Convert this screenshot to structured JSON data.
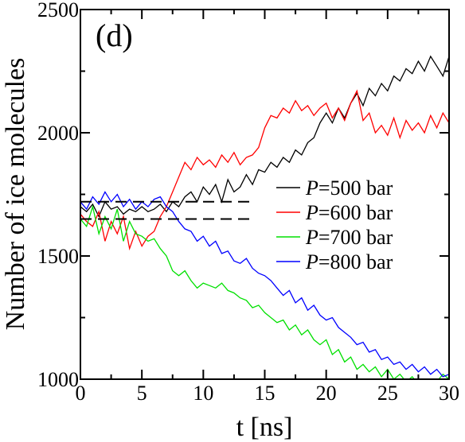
{
  "chart_data": {
    "type": "line",
    "panel_label": "(d)",
    "xlabel": "t [ns]",
    "ylabel": "Number of ice molecules",
    "xlim": [
      0,
      30
    ],
    "ylim": [
      1000,
      2500
    ],
    "x_ticks": [
      0,
      5,
      10,
      15,
      20,
      25,
      30
    ],
    "y_ticks": [
      1000,
      1500,
      2000,
      2500
    ],
    "grid": false,
    "legend_position": "center-right",
    "reference_lines": [
      {
        "style": "dashed",
        "color": "#000000",
        "y": 1720,
        "x_range": [
          0,
          14
        ]
      },
      {
        "style": "dashed",
        "color": "#000000",
        "y": 1650,
        "x_range": [
          0,
          14
        ]
      }
    ],
    "series": [
      {
        "name": "P=500 bar",
        "name_italic": "P",
        "name_rest": "=500 bar",
        "color": "#000000",
        "x": [
          0,
          0.5,
          1,
          1.5,
          2,
          2.5,
          3,
          3.5,
          4,
          4.5,
          5,
          5.5,
          6,
          6.5,
          7,
          7.5,
          8,
          8.5,
          9,
          9.5,
          10,
          10.5,
          11,
          11.5,
          12,
          12.5,
          13,
          13.5,
          14,
          14.5,
          15,
          15.5,
          16,
          16.5,
          17,
          17.5,
          18,
          18.5,
          19,
          19.5,
          20,
          20.5,
          21,
          21.5,
          22,
          22.5,
          23,
          23.5,
          24,
          24.5,
          25,
          25.5,
          26,
          26.5,
          27,
          27.5,
          28,
          28.5,
          29,
          29.5,
          30
        ],
        "values": [
          1700,
          1680,
          1710,
          1660,
          1720,
          1690,
          1700,
          1670,
          1690,
          1680,
          1700,
          1680,
          1690,
          1710,
          1680,
          1720,
          1700,
          1740,
          1760,
          1720,
          1780,
          1750,
          1790,
          1720,
          1810,
          1760,
          1780,
          1830,
          1790,
          1850,
          1840,
          1880,
          1860,
          1900,
          1880,
          1930,
          1910,
          1960,
          1980,
          2040,
          2080,
          2040,
          2100,
          2060,
          2120,
          2160,
          2110,
          2180,
          2150,
          2200,
          2170,
          2230,
          2210,
          2260,
          2240,
          2290,
          2250,
          2310,
          2270,
          2230,
          2310
        ]
      },
      {
        "name": "P=600 bar",
        "name_italic": "P",
        "name_rest": "=600 bar",
        "color": "#ff0000",
        "x": [
          0,
          0.5,
          1,
          1.5,
          2,
          2.5,
          3,
          3.5,
          4,
          4.5,
          5,
          5.5,
          6,
          6.5,
          7,
          7.5,
          8,
          8.5,
          9,
          9.5,
          10,
          10.5,
          11,
          11.5,
          12,
          12.5,
          13,
          13.5,
          14,
          14.5,
          15,
          15.5,
          16,
          16.5,
          17,
          17.5,
          18,
          18.5,
          19,
          19.5,
          20,
          20.5,
          21,
          21.5,
          22,
          22.5,
          23,
          23.5,
          24,
          24.5,
          25,
          25.5,
          26,
          26.5,
          27,
          27.5,
          28,
          28.5,
          29,
          29.5,
          30
        ],
        "values": [
          1670,
          1640,
          1620,
          1680,
          1560,
          1640,
          1590,
          1660,
          1530,
          1600,
          1540,
          1580,
          1600,
          1660,
          1700,
          1760,
          1820,
          1880,
          1850,
          1900,
          1870,
          1890,
          1860,
          1910,
          1880,
          1920,
          1870,
          1900,
          1910,
          1940,
          2020,
          2070,
          2060,
          2100,
          2080,
          2130,
          2090,
          2110,
          2070,
          2100,
          2120,
          2060,
          2100,
          2050,
          2120,
          2170,
          2050,
          2080,
          2000,
          2030,
          1990,
          2060,
          1980,
          2050,
          2010,
          2040,
          2000,
          2070,
          2020,
          2080,
          2040
        ]
      },
      {
        "name": "P=700 bar",
        "name_italic": "P",
        "name_rest": "=700 bar",
        "color": "#00e000",
        "x": [
          0,
          0.5,
          1,
          1.5,
          2,
          2.5,
          3,
          3.5,
          4,
          4.5,
          5,
          5.5,
          6,
          6.5,
          7,
          7.5,
          8,
          8.5,
          9,
          9.5,
          10,
          10.5,
          11,
          11.5,
          12,
          12.5,
          13,
          13.5,
          14,
          14.5,
          15,
          15.5,
          16,
          16.5,
          17,
          17.5,
          18,
          18.5,
          19,
          19.5,
          20,
          20.5,
          21,
          21.5,
          22,
          22.5,
          23,
          23.5,
          24,
          24.5,
          25,
          25.5,
          26,
          26.5,
          27,
          27.5,
          28,
          28.5,
          29,
          29.5,
          30
        ],
        "values": [
          1650,
          1620,
          1700,
          1590,
          1660,
          1610,
          1690,
          1560,
          1640,
          1590,
          1580,
          1560,
          1570,
          1530,
          1500,
          1440,
          1420,
          1440,
          1400,
          1370,
          1390,
          1380,
          1370,
          1390,
          1360,
          1350,
          1330,
          1320,
          1290,
          1300,
          1270,
          1250,
          1230,
          1240,
          1200,
          1220,
          1180,
          1200,
          1160,
          1140,
          1160,
          1100,
          1120,
          1070,
          1090,
          1040,
          1060,
          1030,
          1050,
          1010,
          1040,
          1000,
          1020,
          990,
          1010,
          980,
          1000,
          970,
          990,
          1020,
          1000
        ]
      },
      {
        "name": "P=800 bar",
        "name_italic": "P",
        "name_rest": "=800 bar",
        "color": "#0000ff",
        "x": [
          0,
          0.5,
          1,
          1.5,
          2,
          2.5,
          3,
          3.5,
          4,
          4.5,
          5,
          5.5,
          6,
          6.5,
          7,
          7.5,
          8,
          8.5,
          9,
          9.5,
          10,
          10.5,
          11,
          11.5,
          12,
          12.5,
          13,
          13.5,
          14,
          14.5,
          15,
          15.5,
          16,
          16.5,
          17,
          17.5,
          18,
          18.5,
          19,
          19.5,
          20,
          20.5,
          21,
          21.5,
          22,
          22.5,
          23,
          23.5,
          24,
          24.5,
          25,
          25.5,
          26,
          26.5,
          27,
          27.5,
          28,
          28.5,
          29,
          29.5,
          30
        ],
        "values": [
          1720,
          1690,
          1740,
          1710,
          1760,
          1720,
          1750,
          1700,
          1730,
          1690,
          1720,
          1700,
          1730,
          1740,
          1700,
          1680,
          1640,
          1610,
          1600,
          1560,
          1580,
          1540,
          1560,
          1510,
          1520,
          1480,
          1470,
          1490,
          1450,
          1430,
          1420,
          1400,
          1370,
          1340,
          1360,
          1310,
          1330,
          1280,
          1300,
          1260,
          1240,
          1250,
          1210,
          1190,
          1170,
          1140,
          1150,
          1110,
          1120,
          1080,
          1090,
          1060,
          1070,
          1040,
          1060,
          1030,
          1050,
          1020,
          1040,
          1010,
          1020
        ]
      }
    ]
  }
}
